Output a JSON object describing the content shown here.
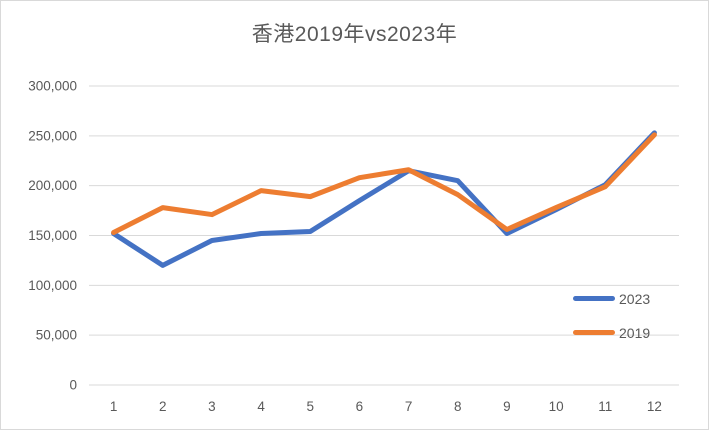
{
  "title": "香港2019年vs2023年",
  "colors": {
    "series_2023": "#4472c4",
    "series_2019": "#ed7d31",
    "gridline": "#d9d9d9",
    "axis_line": "#d9d9d9",
    "text": "#595959",
    "chart_border": "#d9d9d9",
    "background": "#ffffff"
  },
  "legend": {
    "position": "inside-right",
    "items": [
      {
        "label": "2023",
        "color": "#4472c4"
      },
      {
        "label": "2019",
        "color": "#ed7d31"
      }
    ]
  },
  "chart_data": {
    "type": "line",
    "title": "香港2019年vs2023年",
    "categories": [
      1,
      2,
      3,
      4,
      5,
      6,
      7,
      8,
      9,
      10,
      11,
      12
    ],
    "series": [
      {
        "name": "2023",
        "color": "#4472c4",
        "values": [
          152000,
          120000,
          145000,
          152000,
          154000,
          185000,
          215000,
          205000,
          152000,
          176000,
          201000,
          253000
        ]
      },
      {
        "name": "2019",
        "color": "#ed7d31",
        "values": [
          153000,
          178000,
          171000,
          195000,
          189000,
          208000,
          216000,
          191000,
          156000,
          178000,
          199000,
          251000
        ]
      }
    ],
    "xlabel": "",
    "ylabel": "",
    "ylim": [
      0,
      300000
    ],
    "y_ticks": [
      0,
      50000,
      100000,
      150000,
      200000,
      250000,
      300000
    ],
    "grid": true,
    "legend_position": "inside-right"
  }
}
